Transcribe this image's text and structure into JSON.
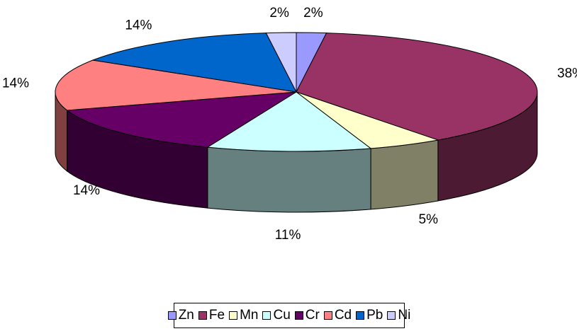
{
  "chart_data": {
    "type": "pie",
    "title": "",
    "three_d": true,
    "categories": [
      "Zn",
      "Fe",
      "Mn",
      "Cu",
      "Cr",
      "Cd",
      "Pb",
      "Ni"
    ],
    "values": [
      2,
      38,
      5,
      11,
      14,
      14,
      14,
      2
    ],
    "data_labels": [
      "2%",
      "38%",
      "5%",
      "11%",
      "14%",
      "14%",
      "14%",
      "2%"
    ],
    "colors": [
      "#9999ff",
      "#993366",
      "#ffffcc",
      "#ccffff",
      "#660066",
      "#ff8080",
      "#0066cc",
      "#ccccff"
    ],
    "legend_position": "bottom"
  }
}
